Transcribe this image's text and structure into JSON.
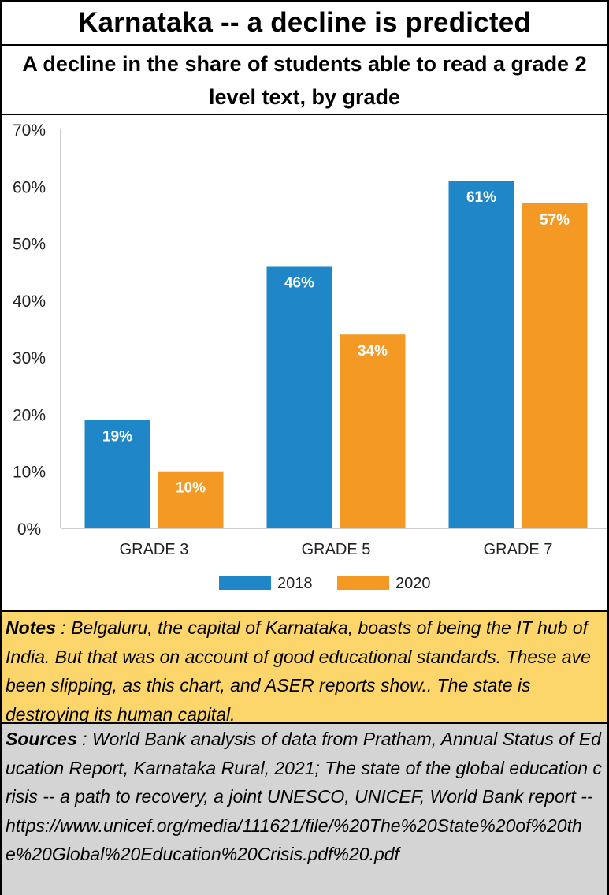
{
  "header": {
    "title": "Karnataka -- a decline is predicted",
    "subtitle": "A decline in the share of students able to read a grade 2 level text, by grade"
  },
  "chart_data": {
    "type": "bar",
    "categories": [
      "GRADE 3",
      "GRADE 5",
      "GRADE 7"
    ],
    "series": [
      {
        "name": "2018",
        "values": [
          19,
          46,
          61
        ],
        "labels": [
          "19%",
          "46%",
          "61%"
        ],
        "color": "#1f87c8"
      },
      {
        "name": "2020",
        "values": [
          10,
          34,
          57
        ],
        "labels": [
          "10%",
          "34%",
          "57%"
        ],
        "color": "#f49a24"
      }
    ],
    "ylim": [
      0,
      70
    ],
    "yticks": [
      0,
      10,
      20,
      30,
      40,
      50,
      60,
      70
    ],
    "ytick_labels": [
      "0%",
      "10%",
      "20%",
      "30%",
      "40%",
      "50%",
      "60%",
      "70%"
    ],
    "grid": false,
    "legend": "bottom-center"
  },
  "notes": {
    "label": "Notes",
    "text": " : Belgaluru, the capital of Karnataka, boasts of being the IT hub of India. But that was on account of good educational standards.  These ave been slipping, as this chart, and ASER reports show..  The state is destroying its human capital."
  },
  "sources": {
    "label": "Sources",
    "text": " : World Bank analysis of data from Pratham, Annual Status of Education Report, Karnataka Rural, 2021;  The state of the global education crisis -- a path to recovery, a joint UNESCO, UNICEF, World Bank report -- https://www.unicef.org/media/111621/file/%20The%20State%20of%20the%20Global%20Education%20Crisis.pdf%20.pdf"
  }
}
